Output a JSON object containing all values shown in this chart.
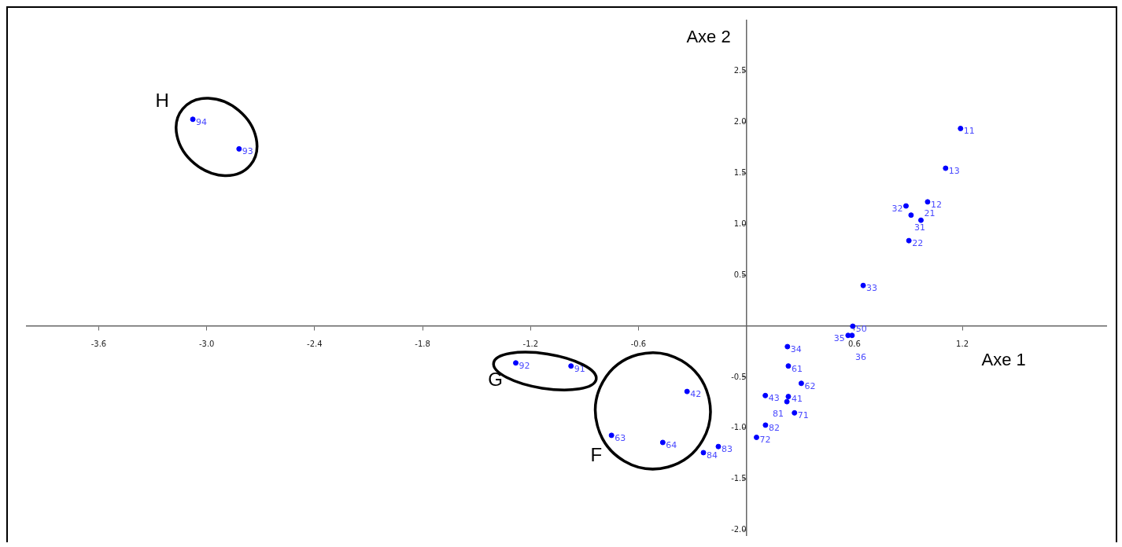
{
  "chart_data": {
    "type": "scatter",
    "xlabel": "Axe 1",
    "ylabel": "Axe 2",
    "x": [
      1.19,
      1.107,
      1.007,
      0.887,
      0.915,
      0.97,
      0.903,
      0.649,
      0.591,
      0.565,
      0.587,
      0.228,
      0.233,
      0.305,
      0.105,
      0.233,
      0.225,
      0.267,
      0.106,
      0.056,
      -1.282,
      -0.975,
      -0.33,
      -0.75,
      -0.465,
      -0.239,
      -0.156,
      -3.077,
      -2.82
    ],
    "series": [
      {
        "color": "#0000ff",
        "values": [
          1.94,
          1.55,
          1.22,
          1.18,
          1.09,
          1.04,
          0.84,
          0.4,
          0.0,
          -0.09,
          -0.09,
          -0.2,
          -0.39,
          -0.56,
          -0.68,
          -0.69,
          -0.74,
          -0.85,
          -0.97,
          -1.09,
          -0.36,
          -0.39,
          -0.64,
          -1.07,
          -1.14,
          -1.24,
          -1.18,
          2.03,
          1.74
        ]
      }
    ],
    "xlim": [
      -4.0,
      2.0
    ],
    "ylim": [
      -2.05,
      3.0
    ],
    "xticks": [
      -3.6,
      {
        "value": -3.0,
        "label": "-3.0"
      },
      -2.4,
      -1.8,
      -1.2,
      -0.6,
      0.6,
      1.2
    ],
    "yticks": [
      {
        "value": -2.0,
        "label": "-2.0"
      },
      -1.5,
      {
        "value": -1.0,
        "label": "-1.0"
      },
      -0.5,
      0.5,
      {
        "value": 1.0,
        "label": "1.0"
      },
      1.5,
      {
        "value": 2.0,
        "label": "2.0"
      },
      2.5
    ],
    "annotations": [
      "H",
      "G",
      "F",
      {
        "text": "11",
        "x": 1.19,
        "y": 1.94
      },
      {
        "text": "13",
        "x": 1.107,
        "y": 1.55
      },
      {
        "text": "12",
        "x": 1.007,
        "y": 1.22
      },
      {
        "text": "32",
        "x": 0.887,
        "y": 1.18
      },
      {
        "text": "31",
        "x": 0.915,
        "y": 1.09
      },
      {
        "text": "21",
        "x": 0.97,
        "y": 1.04
      },
      {
        "text": "22",
        "x": 0.903,
        "y": 0.84
      },
      {
        "text": "33",
        "x": 0.649,
        "y": 0.4
      },
      {
        "text": "50",
        "x": 0.591,
        "y": 0.0
      },
      {
        "text": "35",
        "x": 0.565,
        "y": -0.09
      },
      {
        "text": "36",
        "x": 0.587,
        "y": -0.09
      },
      {
        "text": "34",
        "x": 0.228,
        "y": -0.2
      },
      {
        "text": "61",
        "x": 0.233,
        "y": -0.39
      },
      {
        "text": "62",
        "x": 0.305,
        "y": -0.56
      },
      {
        "text": "43",
        "x": 0.105,
        "y": -0.68
      },
      {
        "text": "41",
        "x": 0.233,
        "y": -0.69
      },
      {
        "text": "81",
        "x": 0.225,
        "y": -0.74
      },
      {
        "text": "71",
        "x": 0.267,
        "y": -0.85
      },
      {
        "text": "82",
        "x": 0.106,
        "y": -0.97
      },
      {
        "text": "72",
        "x": 0.056,
        "y": -1.09
      },
      {
        "text": "92",
        "x": -1.282,
        "y": -0.36
      },
      {
        "text": "91",
        "x": -0.975,
        "y": -0.39
      },
      {
        "text": "42",
        "x": -0.33,
        "y": -0.64
      },
      {
        "text": "63",
        "x": -0.75,
        "y": -1.07
      },
      {
        "text": "64",
        "x": -0.465,
        "y": -1.14
      },
      {
        "text": "84",
        "x": -0.239,
        "y": -1.24
      },
      {
        "text": "83",
        "x": -0.156,
        "y": -1.18
      },
      {
        "text": "94",
        "x": -3.077,
        "y": 2.03
      },
      {
        "text": "93",
        "x": -2.82,
        "y": 1.74
      }
    ],
    "grid": false,
    "legend": false,
    "marker": "circle"
  }
}
